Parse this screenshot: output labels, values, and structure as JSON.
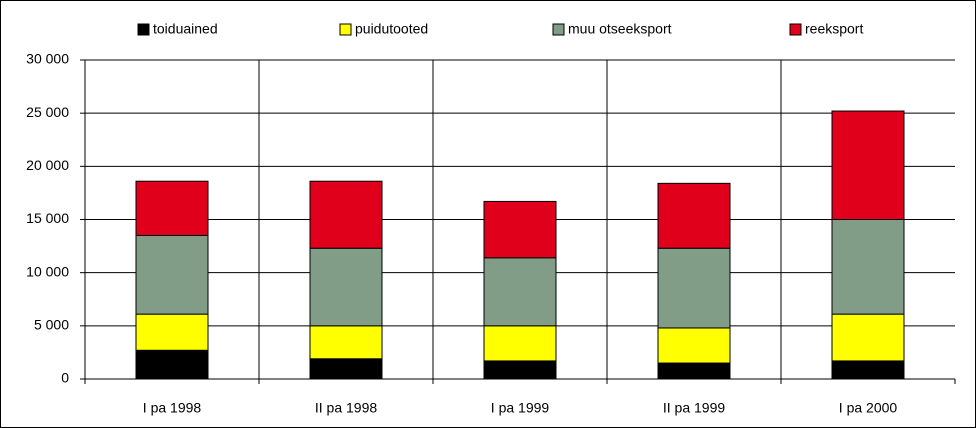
{
  "chart_data": {
    "type": "stacked_bar",
    "categories": [
      "I pa 1998",
      "II pa 1998",
      "I pa 1999",
      "II pa 1999",
      "I pa 2000"
    ],
    "series": [
      {
        "name": "toiduained",
        "color": "#000000",
        "values": [
          2700,
          1900,
          1700,
          1500,
          1700
        ]
      },
      {
        "name": "puidutooted",
        "color": "#ffff00",
        "values": [
          3400,
          3100,
          3300,
          3300,
          4400
        ]
      },
      {
        "name": "muu otseeksport",
        "color": "#819c87",
        "values": [
          7400,
          7300,
          6400,
          7500,
          8900
        ]
      },
      {
        "name": "reeksport",
        "color": "#e0001b",
        "values": [
          5100,
          6300,
          5300,
          6100,
          10200
        ]
      }
    ],
    "ylim": [
      0,
      30000
    ],
    "yticks": [
      0,
      {
        "value": 5000,
        "label": "5 000"
      },
      {
        "value": 10000,
        "label": "10 000"
      },
      {
        "value": 15000,
        "label": "15 000"
      },
      {
        "value": 20000,
        "label": "20 000"
      },
      {
        "value": 25000,
        "label": "25 000"
      },
      {
        "value": 30000,
        "label": "30 000"
      }
    ],
    "grid": true,
    "legend": "top"
  }
}
